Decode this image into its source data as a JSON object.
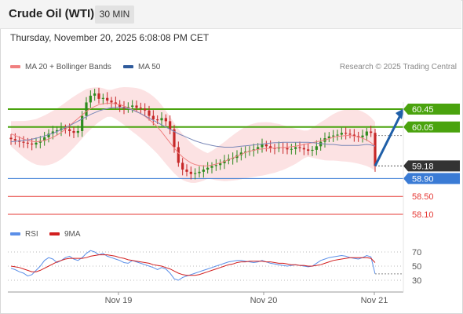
{
  "header": {
    "title": "Crude Oil (WTI)",
    "interval": "30 MIN",
    "timestamp": "Thursday, November 20, 2025 6:08:08 PM CET"
  },
  "legend": {
    "ma20": "MA 20 + Bollinger Bands",
    "ma50": "MA 50",
    "credit": "Research © 2025 Trading Central"
  },
  "rsi_legend": {
    "rsi": "RSI",
    "ma9": "9MA"
  },
  "colors": {
    "bull": "#2e8b1f",
    "bear": "#c62828",
    "resistance": "#4aa30e",
    "support": "#e53935",
    "pivot": "#3a7bd5",
    "last": "#333333",
    "arrow": "#1f5fa8",
    "bollinger": "#fcdfe0",
    "ma20": "#f08080",
    "ma50": "#7a88b8",
    "rsi": "#5b8fe8",
    "rsi_ma": "#d21f1f"
  },
  "chart_data": {
    "type": "candlestick",
    "title": "Crude Oil (WTI)",
    "timeframe": "30 MIN",
    "x_ticks": [
      "Nov 19",
      "Nov 20",
      "Nov 21"
    ],
    "price_ylim": [
      57.8,
      61.2
    ],
    "levels": [
      {
        "value": 60.45,
        "label": "60.45",
        "kind": "resistance"
      },
      {
        "value": 60.05,
        "label": "60.05",
        "kind": "resistance"
      },
      {
        "value": 59.18,
        "label": "59.18",
        "kind": "last"
      },
      {
        "value": 58.9,
        "label": "58.90",
        "kind": "pivot"
      },
      {
        "value": 58.5,
        "label": "58.50",
        "kind": "support"
      },
      {
        "value": 58.1,
        "label": "58.10",
        "kind": "support"
      }
    ],
    "close": [
      59.78,
      59.75,
      59.72,
      59.7,
      59.68,
      59.66,
      59.7,
      59.74,
      59.82,
      59.9,
      59.95,
      59.98,
      60.02,
      60.0,
      59.96,
      59.92,
      59.96,
      60.3,
      60.6,
      60.75,
      60.8,
      60.68,
      60.7,
      60.64,
      60.6,
      60.56,
      60.5,
      60.46,
      60.5,
      60.53,
      60.48,
      60.46,
      60.42,
      60.3,
      60.22,
      60.2,
      60.25,
      60.18,
      60.0,
      59.6,
      59.25,
      59.1,
      59.05,
      59.0,
      59.02,
      59.05,
      59.1,
      59.14,
      59.18,
      59.2,
      59.24,
      59.3,
      59.34,
      59.36,
      59.42,
      59.48,
      59.5,
      59.52,
      59.55,
      59.6,
      59.66,
      59.62,
      59.58,
      59.57,
      59.6,
      59.58,
      59.55,
      59.56,
      59.6,
      59.58,
      59.55,
      59.52,
      59.54,
      59.62,
      59.72,
      59.8,
      59.84,
      59.86,
      59.88,
      59.92,
      59.9,
      59.88,
      59.85,
      59.82,
      59.86,
      59.95,
      59.92,
      59.18
    ],
    "ma20": [
      59.9,
      59.86,
      59.82,
      59.78,
      59.75,
      59.73,
      59.72,
      59.73,
      59.75,
      59.78,
      59.82,
      59.87,
      59.93,
      60.0,
      60.08,
      60.16,
      60.24,
      60.32,
      60.4,
      60.46,
      60.51,
      60.55,
      60.57,
      60.58,
      60.58,
      60.57,
      60.55,
      60.52,
      60.48,
      60.44,
      60.4,
      60.35,
      60.29,
      60.22,
      60.14,
      60.05,
      59.94,
      59.82,
      59.7,
      59.58,
      59.47,
      59.38,
      59.31,
      59.25,
      59.21,
      59.19,
      59.18,
      59.18,
      59.2,
      59.22,
      59.25,
      59.28,
      59.32,
      59.36,
      59.4,
      59.44,
      59.48,
      59.51,
      59.53,
      59.55,
      59.56,
      59.57,
      59.58,
      59.58,
      59.59,
      59.59,
      59.6,
      59.61,
      59.62,
      59.64,
      59.66,
      59.68,
      59.7,
      59.72,
      59.74,
      59.76,
      59.79,
      59.82,
      59.84,
      59.85,
      59.86,
      59.86,
      59.85,
      59.83,
      59.8,
      59.76,
      59.7,
      59.62
    ],
    "ma50": [
      59.72,
      59.73,
      59.74,
      59.75,
      59.76,
      59.78,
      59.8,
      59.82,
      59.85,
      59.88,
      59.91,
      59.95,
      59.99,
      60.04,
      60.08,
      60.13,
      60.18,
      60.23,
      60.28,
      60.33,
      60.37,
      60.41,
      60.44,
      60.46,
      60.48,
      60.49,
      60.49,
      60.48,
      60.46,
      60.43,
      60.39,
      60.35,
      60.3,
      60.25,
      60.2,
      60.15,
      60.1,
      60.05,
      60.0,
      59.95,
      59.9,
      59.86,
      59.82,
      59.78,
      59.74,
      59.71,
      59.68,
      59.66,
      59.64,
      59.62,
      59.61,
      59.6,
      59.6,
      59.6,
      59.61,
      59.62,
      59.63,
      59.64,
      59.65,
      59.66,
      59.67,
      59.68,
      59.69,
      59.7,
      59.7,
      59.71,
      59.71,
      59.71,
      59.71,
      59.71,
      59.71,
      59.71,
      59.7,
      59.69,
      59.68,
      59.67,
      59.66,
      59.66,
      59.65,
      59.64,
      59.64,
      59.64,
      59.64,
      59.64,
      59.65,
      59.66,
      59.65,
      59.62
    ],
    "rsi_ticks": [
      70,
      50,
      30
    ],
    "rsi_ylim": [
      20,
      80
    ],
    "rsi": [
      47,
      45,
      42,
      40,
      36,
      38,
      44,
      50,
      58,
      62,
      60,
      55,
      58,
      62,
      64,
      60,
      58,
      62,
      68,
      72,
      70,
      66,
      68,
      64,
      62,
      60,
      58,
      55,
      54,
      58,
      56,
      54,
      52,
      50,
      48,
      45,
      48,
      46,
      40,
      32,
      30,
      34,
      36,
      38,
      40,
      42,
      44,
      46,
      48,
      50,
      52,
      54,
      56,
      57,
      58,
      58,
      57,
      56,
      55,
      56,
      58,
      56,
      54,
      53,
      52,
      51,
      50,
      51,
      52,
      51,
      50,
      49,
      50,
      54,
      58,
      60,
      62,
      63,
      64,
      65,
      64,
      62,
      61,
      60,
      62,
      65,
      63,
      39
    ],
    "rsi_ma": [
      50,
      49,
      48,
      46,
      44,
      42,
      42,
      44,
      47,
      50,
      53,
      56,
      58,
      60,
      61,
      61,
      61,
      61,
      62,
      64,
      65,
      66,
      66,
      66,
      65,
      64,
      62,
      61,
      59,
      58,
      57,
      56,
      55,
      54,
      52,
      51,
      50,
      48,
      46,
      43,
      40,
      38,
      37,
      37,
      37,
      38,
      40,
      42,
      44,
      46,
      48,
      50,
      52,
      53,
      55,
      56,
      56,
      57,
      57,
      57,
      57,
      56,
      56,
      55,
      54,
      54,
      53,
      52,
      52,
      51,
      51,
      50,
      50,
      51,
      52,
      54,
      56,
      58,
      59,
      60,
      61,
      62,
      62,
      62,
      62,
      62,
      61,
      55
    ]
  }
}
